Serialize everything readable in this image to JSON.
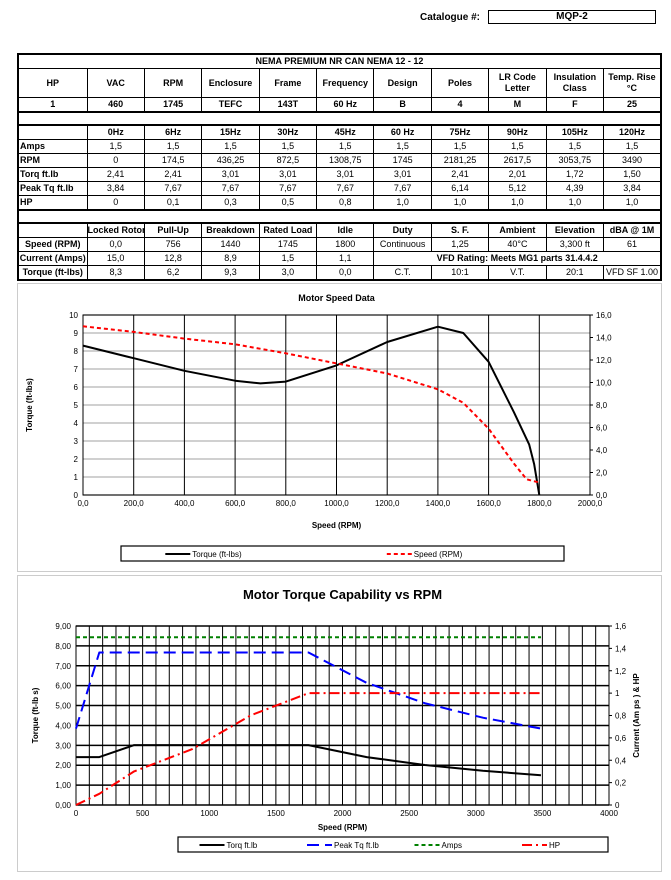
{
  "catalogue": {
    "label": "Catalogue #:",
    "value": "MQP-2"
  },
  "spec": {
    "title": "NEMA PREMIUM NR CAN NEMA 12 - 12",
    "headers": [
      "HP",
      "VAC",
      "RPM",
      "Enclosure",
      "Frame",
      "Frequency",
      "Design",
      "Poles",
      "LR Code Letter",
      "Insulation Class",
      "Temp. Rise °C"
    ],
    "values": [
      "1",
      "460",
      "1745",
      "TEFC",
      "143T",
      "60 Hz",
      "B",
      "4",
      "M",
      "F",
      "25"
    ]
  },
  "freq_table": {
    "headers": [
      "",
      "0Hz",
      "6Hz",
      "15Hz",
      "30Hz",
      "45Hz",
      "60 Hz",
      "75Hz",
      "90Hz",
      "105Hz",
      "120Hz"
    ],
    "rows": [
      [
        "Amps",
        "1,5",
        "1,5",
        "1,5",
        "1,5",
        "1,5",
        "1,5",
        "1,5",
        "1,5",
        "1,5",
        "1,5"
      ],
      [
        "RPM",
        "0",
        "174,5",
        "436,25",
        "872,5",
        "1308,75",
        "1745",
        "2181,25",
        "2617,5",
        "3053,75",
        "3490"
      ],
      [
        "Torq ft.lb",
        "2,41",
        "2,41",
        "3,01",
        "3,01",
        "3,01",
        "3,01",
        "2,41",
        "2,01",
        "1,72",
        "1,50"
      ],
      [
        "Peak Tq ft.lb",
        "3,84",
        "7,67",
        "7,67",
        "7,67",
        "7,67",
        "7,67",
        "6,14",
        "5,12",
        "4,39",
        "3,84"
      ],
      [
        "HP",
        "0",
        "0,1",
        "0,3",
        "0,5",
        "0,8",
        "1,0",
        "1,0",
        "1,0",
        "1,0",
        "1,0"
      ]
    ]
  },
  "perf_table": {
    "headers": [
      "",
      "Locked Rotor",
      "Pull-Up",
      "Breakdown",
      "Rated Load",
      "Idle",
      "Duty",
      "S. F.",
      "Ambient",
      "Elevation",
      "dBA @ 1M"
    ],
    "speed": [
      "Speed (RPM)",
      "0,0",
      "756",
      "1440",
      "1745",
      "1800",
      "Continuous",
      "1,25",
      "40°C",
      "3,300 ft",
      "61"
    ],
    "current": [
      "Current (Amps)",
      "15,0",
      "12,8",
      "8,9",
      "1,5",
      "1,1"
    ],
    "vfd_rating": "VFD Rating: Meets MG1 parts 31.4.4.2",
    "torque": [
      "Torque (ft-lbs)",
      "8,3",
      "6,2",
      "9,3",
      "3,0",
      "0,0",
      "C.T.",
      "10:1",
      "V.T.",
      "20:1",
      "VFD SF 1.00"
    ]
  },
  "chart_data": [
    {
      "type": "line",
      "title": "Motor Speed Data",
      "xlabel": "Speed (RPM)",
      "ylabel": "Torque (ft-lbs)",
      "xlim": [
        0,
        2000
      ],
      "ylim": [
        0,
        10
      ],
      "y2lim": [
        0,
        16
      ],
      "grid": true,
      "legend": "bottom",
      "xticks": [
        "0,0",
        "200,0",
        "400,0",
        "600,0",
        "800,0",
        "1000,0",
        "1200,0",
        "1400,0",
        "1600,0",
        "1800,0",
        "2000,0"
      ],
      "yticks": [
        "0",
        "1",
        "2",
        "3",
        "4",
        "5",
        "6",
        "7",
        "8",
        "9",
        "10"
      ],
      "y2ticks": [
        "0,0",
        "2,0",
        "4,0",
        "6,0",
        "8,0",
        "10,0",
        "12,0",
        "14,0",
        "16,0"
      ],
      "series": [
        {
          "name": "Torque (ft-lbs)",
          "axis": "left",
          "color": "#000000",
          "dash": "solid",
          "x": [
            0,
            200,
            400,
            600,
            700,
            800,
            1000,
            1200,
            1400,
            1500,
            1600,
            1700,
            1760,
            1780,
            1800
          ],
          "y": [
            8.3,
            7.6,
            6.9,
            6.35,
            6.2,
            6.3,
            7.2,
            8.5,
            9.35,
            9.0,
            7.4,
            4.6,
            2.8,
            1.7,
            0
          ]
        },
        {
          "name": "Speed (RPM)",
          "axis": "right",
          "color": "#ff0000",
          "dash": "short",
          "x": [
            0,
            200,
            400,
            600,
            800,
            1000,
            1200,
            1400,
            1500,
            1600,
            1700,
            1750,
            1800
          ],
          "y": [
            15.0,
            14.5,
            13.9,
            13.4,
            12.6,
            11.7,
            10.8,
            9.4,
            8.2,
            5.9,
            2.8,
            1.4,
            1.1
          ]
        }
      ]
    },
    {
      "type": "line",
      "title": "Motor Torque Capability vs RPM",
      "xlabel": "Speed (RPM)",
      "ylabel": "Torque (ft-lb s)",
      "y2label": "Current (Am ps ) & HP",
      "xlim": [
        0,
        4000
      ],
      "ylim": [
        0,
        9
      ],
      "y2lim": [
        0,
        1.6
      ],
      "grid": true,
      "legend": "bottom",
      "xticks": [
        "0",
        "500",
        "1000",
        "1500",
        "2000",
        "2500",
        "3000",
        "3500",
        "4000"
      ],
      "yticks": [
        "0,00",
        "1,00",
        "2,00",
        "3,00",
        "4,00",
        "5,00",
        "6,00",
        "7,00",
        "8,00",
        "9,00"
      ],
      "y2ticks": [
        "0",
        "0,2",
        "0,4",
        "0,6",
        "0,8",
        "1",
        "1,2",
        "1,4",
        "1,6"
      ],
      "x": [
        0,
        174.5,
        436.25,
        872.5,
        1308.75,
        1745,
        2181.25,
        2617.5,
        3053.75,
        3490
      ],
      "series": [
        {
          "name": "Torq ft.lb",
          "axis": "left",
          "color": "#000000",
          "dash": "solid",
          "y": [
            2.41,
            2.41,
            3.01,
            3.01,
            3.01,
            3.01,
            2.41,
            2.01,
            1.72,
            1.5
          ]
        },
        {
          "name": "Peak Tq ft.lb",
          "axis": "left",
          "color": "#0000ff",
          "dash": "long",
          "y": [
            3.84,
            7.67,
            7.67,
            7.67,
            7.67,
            7.67,
            6.14,
            5.12,
            4.39,
            3.84
          ]
        },
        {
          "name": "Amps",
          "axis": "right",
          "color": "#008000",
          "dash": "short",
          "y": [
            1.5,
            1.5,
            1.5,
            1.5,
            1.5,
            1.5,
            1.5,
            1.5,
            1.5,
            1.5
          ]
        },
        {
          "name": "HP",
          "axis": "right",
          "color": "#ff0000",
          "dash": "dashdot",
          "y": [
            0,
            0.1,
            0.3,
            0.5,
            0.8,
            1.0,
            1.0,
            1.0,
            1.0,
            1.0
          ]
        }
      ]
    }
  ]
}
